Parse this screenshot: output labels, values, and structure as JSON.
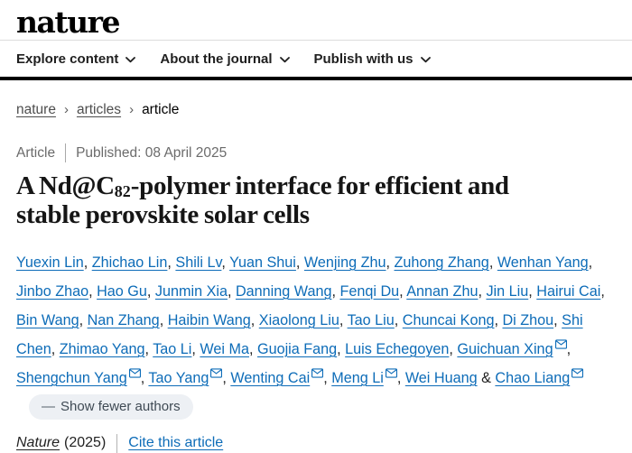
{
  "header": {
    "logo": "nature",
    "nav": [
      {
        "label": "Explore content"
      },
      {
        "label": "About the journal"
      },
      {
        "label": "Publish with us"
      }
    ]
  },
  "breadcrumb": {
    "items": [
      {
        "label": "nature"
      },
      {
        "label": "articles"
      },
      {
        "label": "article"
      }
    ],
    "separator": "›"
  },
  "article_meta": {
    "type_label": "Article",
    "published": "Published: 08 April 2025"
  },
  "title": {
    "prefix": "A Nd@C",
    "subscript": "82",
    "mid": "-polymer interface for efficient and",
    "line2": "stable perovskite solar cells"
  },
  "authors": {
    "separator": ", ",
    "ampersand": "&",
    "show_fewer_dash": "—",
    "show_fewer_label": "Show fewer authors",
    "list": [
      {
        "name": "Yuexin Lin",
        "email": false
      },
      {
        "name": "Zhichao Lin",
        "email": false
      },
      {
        "name": "Shili Lv",
        "email": false
      },
      {
        "name": "Yuan Shui",
        "email": false
      },
      {
        "name": "Wenjing Zhu",
        "email": false
      },
      {
        "name": "Zuhong Zhang",
        "email": false
      },
      {
        "name": "Wenhan Yang",
        "email": false
      },
      {
        "name": "Jinbo Zhao",
        "email": false
      },
      {
        "name": "Hao Gu",
        "email": false
      },
      {
        "name": "Junmin Xia",
        "email": false
      },
      {
        "name": "Danning Wang",
        "email": false
      },
      {
        "name": "Fenqi Du",
        "email": false
      },
      {
        "name": "Annan Zhu",
        "email": false
      },
      {
        "name": "Jin Liu",
        "email": false
      },
      {
        "name": "Hairui Cai",
        "email": false
      },
      {
        "name": "Bin Wang",
        "email": false
      },
      {
        "name": "Nan Zhang",
        "email": false
      },
      {
        "name": "Haibin Wang",
        "email": false
      },
      {
        "name": "Xiaolong Liu",
        "email": false
      },
      {
        "name": "Tao Liu",
        "email": false
      },
      {
        "name": "Chuncai Kong",
        "email": false
      },
      {
        "name": "Di Zhou",
        "email": false
      },
      {
        "name": "Shi Chen",
        "email": false
      },
      {
        "name": "Zhimao Yang",
        "email": false
      },
      {
        "name": "Tao Li",
        "email": false
      },
      {
        "name": "Wei Ma",
        "email": false
      },
      {
        "name": "Guojia Fang",
        "email": false
      },
      {
        "name": "Luis Echegoyen",
        "email": false
      },
      {
        "name": "Guichuan Xing",
        "email": true
      },
      {
        "name": "Shengchun Yang",
        "email": true
      },
      {
        "name": "Tao Yang",
        "email": true
      },
      {
        "name": "Wenting Cai",
        "email": true
      },
      {
        "name": "Meng Li",
        "email": true
      },
      {
        "name": "Wei Huang",
        "email": false
      },
      {
        "name": "Chao Liang",
        "email": true
      }
    ]
  },
  "citation": {
    "journal": "Nature",
    "year": "(2025)",
    "cite_label": "Cite this article"
  },
  "colors": {
    "link_blue": "#0d6cb8",
    "text_dark": "#222222",
    "meta_gray": "#6b6b6b",
    "pill_background": "#edf0f4",
    "pill_text": "#3f4a54",
    "header_bar_black": "#000000",
    "divider_light": "#dcdcdc"
  }
}
